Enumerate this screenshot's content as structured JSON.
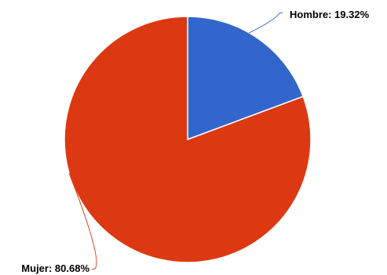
{
  "chart_data": {
    "type": "pie",
    "title": "",
    "slices": [
      {
        "name": "Hombre",
        "value": 19.32,
        "label": "Hombre: 19.32%",
        "color": "#3366cc"
      },
      {
        "name": "Mujer",
        "value": 80.68,
        "label": "Mujer: 80.68%",
        "color": "#dc3912"
      }
    ],
    "legend": "none",
    "data_labels": "outside-with-leader-lines",
    "start_angle_deg": 0,
    "direction": "clockwise",
    "slice_border_color": "#ffffff"
  }
}
